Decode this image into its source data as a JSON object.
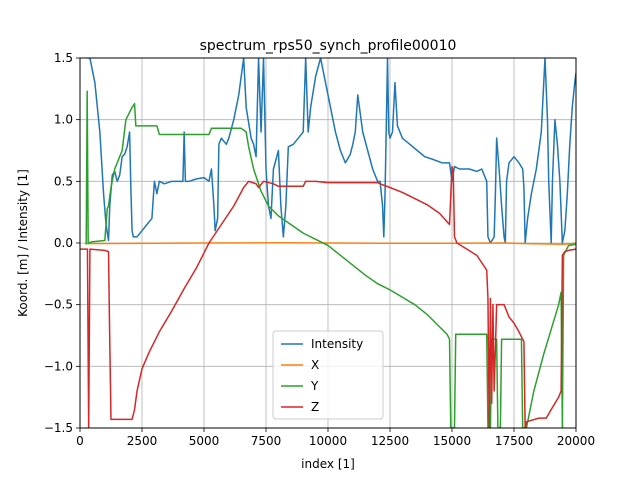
{
  "chart_data": {
    "type": "line",
    "title": "spectrum_rps50_synch_profile00010",
    "xlabel": "index [1]",
    "ylabel": "Koord. [m] / Intensity [1]",
    "xlim": [
      0,
      20000
    ],
    "ylim": [
      -1.5,
      1.5
    ],
    "grid": true,
    "legend_position": "lower center",
    "x_ticks": [
      0,
      2500,
      5000,
      7500,
      10000,
      12500,
      15000,
      17500,
      20000
    ],
    "x_tick_labels": [
      "0",
      "2500",
      "5000",
      "7500",
      "10000",
      "12500",
      "15000",
      "17500",
      "20000"
    ],
    "y_ticks": [
      -1.5,
      -1.0,
      -0.5,
      0.0,
      0.5,
      1.0,
      1.5
    ],
    "y_tick_labels": [
      "−1.5",
      "−1.0",
      "−0.5",
      "0.0",
      "0.5",
      "1.0",
      "1.5"
    ],
    "series": [
      {
        "name": "Intensity",
        "color": "#1f77b4",
        "points": [
          [
            300,
            1.5
          ],
          [
            400,
            1.5
          ],
          [
            600,
            1.3
          ],
          [
            800,
            0.9
          ],
          [
            950,
            0.4
          ],
          [
            1050,
            0.15
          ],
          [
            1150,
            0.02
          ],
          [
            1200,
            0.3
          ],
          [
            1300,
            0.55
          ],
          [
            1400,
            0.58
          ],
          [
            1500,
            0.5
          ],
          [
            1600,
            0.55
          ],
          [
            1700,
            0.7
          ],
          [
            1800,
            0.72
          ],
          [
            1900,
            0.78
          ],
          [
            2000,
            0.9
          ],
          [
            2050,
            0.45
          ],
          [
            2100,
            0.1
          ],
          [
            2150,
            0.05
          ],
          [
            2300,
            0.05
          ],
          [
            2500,
            0.1
          ],
          [
            2700,
            0.15
          ],
          [
            2900,
            0.2
          ],
          [
            3000,
            0.5
          ],
          [
            3100,
            0.4
          ],
          [
            3200,
            0.5
          ],
          [
            3400,
            0.48
          ],
          [
            3700,
            0.5
          ],
          [
            4000,
            0.5
          ],
          [
            4150,
            0.5
          ],
          [
            4200,
            0.9
          ],
          [
            4250,
            0.5
          ],
          [
            4400,
            0.5
          ],
          [
            4700,
            0.52
          ],
          [
            5000,
            0.53
          ],
          [
            5200,
            0.5
          ],
          [
            5300,
            0.6
          ],
          [
            5400,
            0.3
          ],
          [
            5450,
            0.1
          ],
          [
            5550,
            0.2
          ],
          [
            5600,
            0.8
          ],
          [
            5700,
            0.85
          ],
          [
            5900,
            0.8
          ],
          [
            6000,
            0.85
          ],
          [
            6200,
            1.0
          ],
          [
            6400,
            1.2
          ],
          [
            6600,
            1.5
          ],
          [
            6700,
            1.1
          ],
          [
            6900,
            0.85
          ],
          [
            7000,
            0.8
          ],
          [
            7100,
            0.7
          ],
          [
            7200,
            1.5
          ],
          [
            7300,
            0.9
          ],
          [
            7400,
            1.5
          ],
          [
            7500,
            0.6
          ],
          [
            7600,
            0.3
          ],
          [
            7700,
            0.2
          ],
          [
            7800,
            0.6
          ],
          [
            8000,
            0.75
          ],
          [
            8100,
            0.3
          ],
          [
            8200,
            0.05
          ],
          [
            8300,
            0.3
          ],
          [
            8400,
            0.78
          ],
          [
            8600,
            0.8
          ],
          [
            8800,
            0.85
          ],
          [
            9000,
            0.9
          ],
          [
            9100,
            1.5
          ],
          [
            9200,
            0.9
          ],
          [
            9300,
            1.1
          ],
          [
            9500,
            1.35
          ],
          [
            9700,
            1.5
          ],
          [
            9900,
            1.3
          ],
          [
            10100,
            1.1
          ],
          [
            10300,
            0.9
          ],
          [
            10500,
            0.75
          ],
          [
            10700,
            0.65
          ],
          [
            10900,
            0.72
          ],
          [
            11000,
            0.8
          ],
          [
            11100,
            0.9
          ],
          [
            11200,
            1.2
          ],
          [
            11300,
            1.05
          ],
          [
            11400,
            0.9
          ],
          [
            11600,
            0.75
          ],
          [
            11800,
            0.6
          ],
          [
            12000,
            0.5
          ],
          [
            12100,
            0.5
          ],
          [
            12200,
            0.3
          ],
          [
            12250,
            0.05
          ],
          [
            12300,
            0.4
          ],
          [
            12400,
            1.5
          ],
          [
            12450,
            0.9
          ],
          [
            12500,
            0.85
          ],
          [
            12600,
            0.9
          ],
          [
            12700,
            1.3
          ],
          [
            12800,
            0.95
          ],
          [
            13000,
            0.85
          ],
          [
            13300,
            0.8
          ],
          [
            13600,
            0.75
          ],
          [
            13900,
            0.7
          ],
          [
            14200,
            0.68
          ],
          [
            14600,
            0.65
          ],
          [
            14900,
            0.65
          ],
          [
            15000,
            0.5
          ],
          [
            15100,
            0.62
          ],
          [
            15300,
            0.6
          ],
          [
            15700,
            0.6
          ],
          [
            16000,
            0.58
          ],
          [
            16200,
            0.6
          ],
          [
            16300,
            0.55
          ],
          [
            16400,
            0.5
          ],
          [
            16450,
            0.05
          ],
          [
            16550,
            0.0
          ],
          [
            16700,
            0.05
          ],
          [
            16750,
            0.4
          ],
          [
            16800,
            0.85
          ],
          [
            16900,
            0.6
          ],
          [
            17000,
            0.3
          ],
          [
            17100,
            0.05
          ],
          [
            17150,
            0.0
          ],
          [
            17200,
            0.5
          ],
          [
            17300,
            0.65
          ],
          [
            17500,
            0.7
          ],
          [
            17700,
            0.65
          ],
          [
            17850,
            0.6
          ],
          [
            17900,
            0.45
          ],
          [
            17950,
            0.0
          ],
          [
            18050,
            0.2
          ],
          [
            18200,
            0.4
          ],
          [
            18400,
            0.6
          ],
          [
            18600,
            0.9
          ],
          [
            18750,
            1.5
          ],
          [
            18850,
            1.0
          ],
          [
            18900,
            0.5
          ],
          [
            19000,
            0.0
          ],
          [
            19050,
            0.5
          ],
          [
            19150,
            1.0
          ],
          [
            19250,
            0.8
          ],
          [
            19350,
            0.5
          ],
          [
            19400,
            0.25
          ],
          [
            19450,
            0.0
          ],
          [
            19550,
            0.1
          ],
          [
            19650,
            0.4
          ],
          [
            19750,
            0.8
          ],
          [
            19850,
            1.1
          ],
          [
            19950,
            1.3
          ],
          [
            20000,
            1.38
          ]
        ]
      },
      {
        "name": "X",
        "color": "#ff7f0e",
        "points": [
          [
            200,
            -0.005
          ],
          [
            2000,
            -0.003
          ],
          [
            5000,
            0.0
          ],
          [
            8000,
            0.002
          ],
          [
            10000,
            0.0
          ],
          [
            12500,
            -0.002
          ],
          [
            15000,
            -0.002
          ],
          [
            17000,
            0.0
          ],
          [
            18000,
            -0.005
          ],
          [
            19500,
            -0.01
          ],
          [
            19800,
            -0.005
          ],
          [
            20000,
            0.0
          ]
        ]
      },
      {
        "name": "Y",
        "color": "#2ca02c",
        "points": [
          [
            250,
            -0.01
          ],
          [
            290,
            1.23
          ],
          [
            330,
            0.0
          ],
          [
            500,
            0.01
          ],
          [
            1000,
            0.02
          ],
          [
            1100,
            0.28
          ],
          [
            1150,
            0.3
          ],
          [
            1250,
            0.45
          ],
          [
            1400,
            0.6
          ],
          [
            1700,
            0.75
          ],
          [
            1850,
            1.0
          ],
          [
            2100,
            1.1
          ],
          [
            2200,
            1.13
          ],
          [
            2250,
            0.95
          ],
          [
            2600,
            0.95
          ],
          [
            3100,
            0.95
          ],
          [
            3200,
            0.88
          ],
          [
            4200,
            0.88
          ],
          [
            4300,
            0.88
          ],
          [
            5200,
            0.88
          ],
          [
            5300,
            0.93
          ],
          [
            6500,
            0.93
          ],
          [
            6700,
            0.9
          ],
          [
            6800,
            0.78
          ],
          [
            7000,
            0.6
          ],
          [
            7300,
            0.42
          ],
          [
            7600,
            0.3
          ],
          [
            8000,
            0.22
          ],
          [
            8500,
            0.15
          ],
          [
            9000,
            0.08
          ],
          [
            9500,
            0.03
          ],
          [
            10000,
            -0.02
          ],
          [
            10500,
            -0.1
          ],
          [
            11000,
            -0.18
          ],
          [
            11500,
            -0.26
          ],
          [
            12000,
            -0.33
          ],
          [
            12500,
            -0.38
          ],
          [
            13000,
            -0.44
          ],
          [
            13500,
            -0.5
          ],
          [
            14000,
            -0.58
          ],
          [
            14500,
            -0.68
          ],
          [
            14800,
            -0.74
          ],
          [
            14900,
            -0.78
          ],
          [
            14950,
            -1.5
          ],
          [
            15000,
            -1.5
          ],
          [
            15050,
            -1.5
          ],
          [
            15100,
            -1.5
          ],
          [
            15150,
            -0.74
          ],
          [
            16400,
            -0.74
          ],
          [
            16450,
            -1.5
          ],
          [
            16550,
            -1.5
          ],
          [
            16600,
            -0.78
          ],
          [
            16800,
            -0.78
          ],
          [
            16850,
            -1.5
          ],
          [
            16950,
            -1.5
          ],
          [
            17000,
            -0.78
          ],
          [
            17800,
            -0.78
          ],
          [
            17850,
            -1.5
          ],
          [
            18000,
            -1.5
          ],
          [
            18300,
            -1.2
          ],
          [
            18700,
            -0.9
          ],
          [
            19000,
            -0.7
          ],
          [
            19300,
            -0.5
          ],
          [
            19400,
            -0.4
          ],
          [
            19450,
            -1.5
          ],
          [
            19500,
            -0.1
          ],
          [
            19700,
            -0.02
          ],
          [
            20000,
            -0.01
          ]
        ]
      },
      {
        "name": "Z",
        "color": "#d62728",
        "points": [
          [
            0,
            -0.05
          ],
          [
            300,
            -0.05
          ],
          [
            350,
            -1.5
          ],
          [
            400,
            -0.05
          ],
          [
            1000,
            -0.06
          ],
          [
            1150,
            -0.07
          ],
          [
            1200,
            -0.8
          ],
          [
            1250,
            -1.43
          ],
          [
            1300,
            -1.43
          ],
          [
            1800,
            -1.43
          ],
          [
            2100,
            -1.43
          ],
          [
            2200,
            -1.35
          ],
          [
            2300,
            -1.2
          ],
          [
            2500,
            -1.02
          ],
          [
            2800,
            -0.88
          ],
          [
            3200,
            -0.72
          ],
          [
            3700,
            -0.55
          ],
          [
            4200,
            -0.37
          ],
          [
            4700,
            -0.2
          ],
          [
            5200,
            0.0
          ],
          [
            5700,
            0.15
          ],
          [
            6200,
            0.3
          ],
          [
            6600,
            0.45
          ],
          [
            6800,
            0.5
          ],
          [
            7100,
            0.48
          ],
          [
            7200,
            0.45
          ],
          [
            7400,
            0.5
          ],
          [
            7800,
            0.48
          ],
          [
            8000,
            0.46
          ],
          [
            9000,
            0.46
          ],
          [
            9100,
            0.5
          ],
          [
            9500,
            0.5
          ],
          [
            10000,
            0.49
          ],
          [
            11000,
            0.49
          ],
          [
            12000,
            0.49
          ],
          [
            12100,
            0.48
          ],
          [
            12500,
            0.45
          ],
          [
            13000,
            0.41
          ],
          [
            13500,
            0.36
          ],
          [
            14000,
            0.31
          ],
          [
            14500,
            0.24
          ],
          [
            14900,
            0.15
          ],
          [
            15000,
            0.62
          ],
          [
            15050,
            0.58
          ],
          [
            15100,
            0.05
          ],
          [
            15200,
            0.0
          ],
          [
            15600,
            -0.05
          ],
          [
            16000,
            -0.1
          ],
          [
            16400,
            -0.22
          ],
          [
            16450,
            -0.45
          ],
          [
            16500,
            -1.5
          ],
          [
            16550,
            -0.45
          ],
          [
            16600,
            -1.3
          ],
          [
            16650,
            -0.5
          ],
          [
            16700,
            -1.2
          ],
          [
            16800,
            -0.5
          ],
          [
            17000,
            -0.5
          ],
          [
            17100,
            -0.5
          ],
          [
            17300,
            -0.6
          ],
          [
            17500,
            -0.65
          ],
          [
            17700,
            -0.72
          ],
          [
            17900,
            -0.8
          ],
          [
            17950,
            -1.5
          ],
          [
            18000,
            -1.45
          ],
          [
            18500,
            -1.42
          ],
          [
            18800,
            -1.42
          ],
          [
            19000,
            -1.35
          ],
          [
            19300,
            -1.25
          ],
          [
            19400,
            -1.2
          ],
          [
            19450,
            -0.1
          ],
          [
            19550,
            -0.07
          ],
          [
            19700,
            -0.06
          ],
          [
            20000,
            -0.05
          ]
        ]
      }
    ]
  }
}
